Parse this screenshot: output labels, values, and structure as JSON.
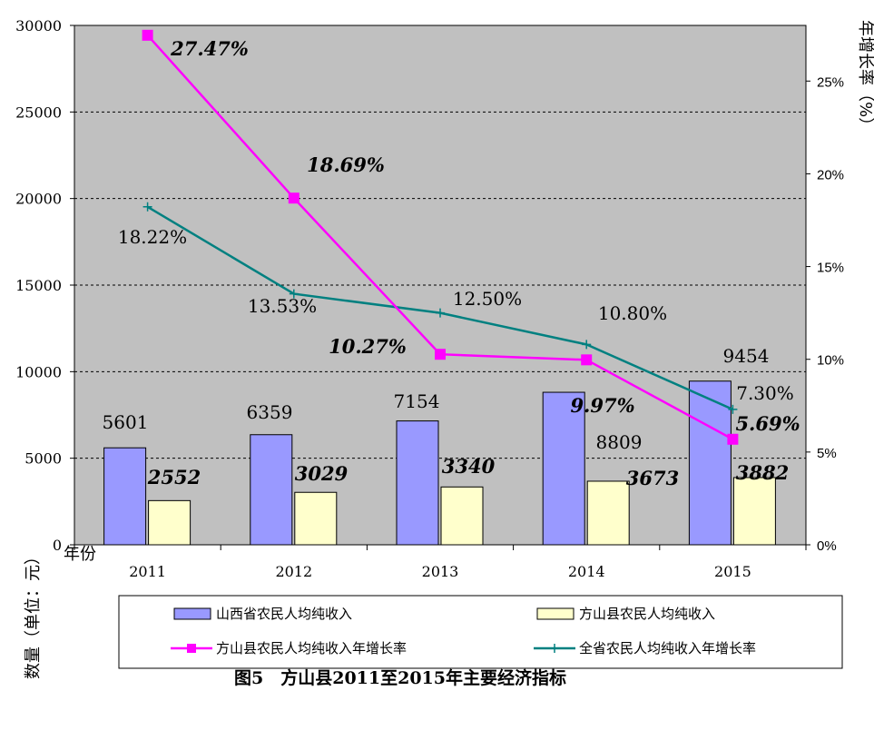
{
  "caption": "图5　方山县2011至2015年主要经济指标",
  "chart_data": {
    "type": "bar",
    "categories": [
      "2011",
      "2012",
      "2013",
      "2014",
      "2015"
    ],
    "x_axis_label": "年份",
    "left_axis": {
      "label": "数量（单位：元）",
      "min": 0,
      "max": 30000,
      "ticks": [
        0,
        5000,
        10000,
        15000,
        20000,
        25000,
        30000
      ]
    },
    "right_axis": {
      "label": "年增长率（%）",
      "min": 0,
      "max": 28,
      "ticks": [
        0,
        5,
        10,
        15,
        20,
        25
      ],
      "tick_labels": [
        "0%",
        "5%",
        "10%",
        "15%",
        "20%",
        "25%"
      ]
    },
    "grid": "horizontal-dashed",
    "series": [
      {
        "name": "山西省农民人均纯收入",
        "kind": "bar",
        "axis": "left",
        "color": "#9999ff",
        "values": [
          5601,
          6359,
          7154,
          8809,
          9454
        ],
        "labels": [
          "5601",
          "6359",
          "7154",
          "8809",
          "9454"
        ]
      },
      {
        "name": "方山县农民人均纯收入",
        "kind": "bar",
        "axis": "left",
        "color": "#ffffcc",
        "values": [
          2552,
          3029,
          3340,
          3673,
          3882
        ],
        "labels": [
          "2552",
          "3029",
          "3340",
          "3673",
          "3882"
        ]
      },
      {
        "name": "方山县农民人均纯收入年增长率",
        "kind": "line",
        "axis": "right",
        "color": "#ff00ff",
        "values": [
          27.47,
          18.69,
          10.27,
          9.97,
          5.69
        ],
        "labels": [
          "27.47%",
          "18.69%",
          "10.27%",
          "9.97%",
          "5.69%"
        ]
      },
      {
        "name": "全省农民人均纯收入年增长率",
        "kind": "line",
        "axis": "right",
        "color": "#008080",
        "values": [
          18.22,
          13.53,
          12.5,
          10.8,
          7.3
        ],
        "labels": [
          "18.22%",
          "13.53%",
          "12.50%",
          "10.80%",
          "7.30%"
        ]
      }
    ],
    "legend_position": "bottom"
  }
}
